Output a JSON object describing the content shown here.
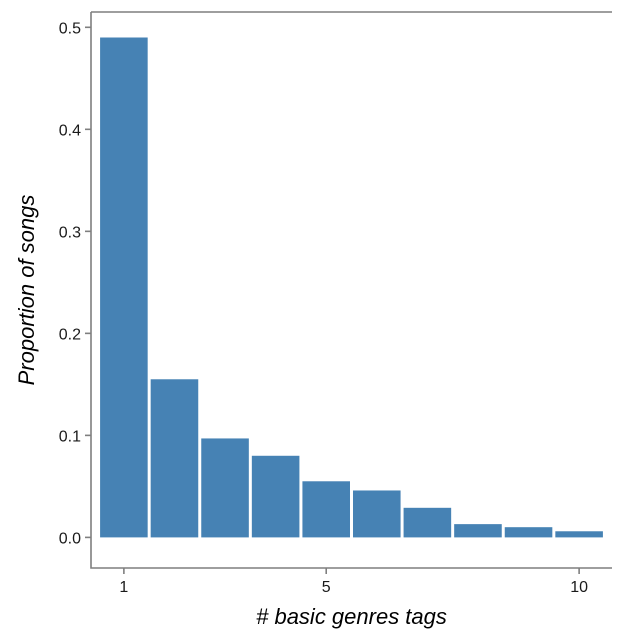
{
  "chart_data": {
    "type": "bar",
    "title": "",
    "xlabel": "# basic genres tags",
    "ylabel": "Proportion of songs",
    "categories": [
      1,
      2,
      3,
      4,
      5,
      6,
      7,
      8,
      9,
      10
    ],
    "values": [
      0.49,
      0.155,
      0.097,
      0.08,
      0.055,
      0.046,
      0.029,
      0.013,
      0.01,
      0.006
    ],
    "xticks": [
      1,
      5,
      10
    ],
    "xtick_labels": [
      "1",
      "5",
      "10"
    ],
    "yticks": [
      0.0,
      0.1,
      0.2,
      0.3,
      0.4,
      0.5
    ],
    "ytick_labels": [
      "0.0",
      "0.1",
      "0.2",
      "0.3",
      "0.4",
      "0.5"
    ],
    "ylim": [
      -0.03,
      0.515
    ],
    "xlim": [
      0.35,
      10.65
    ],
    "grid": false,
    "bar_color": "#4682b4",
    "axis_color": "#7f7f7f"
  }
}
